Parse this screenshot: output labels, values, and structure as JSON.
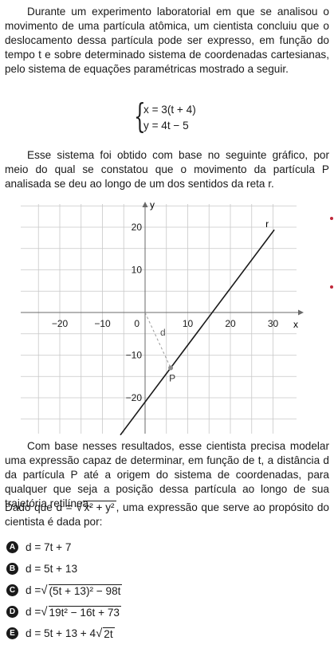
{
  "intro": "Durante um experimento laboratorial em que se analisou o movimento de uma partícula atômica, um cientista concluiu que o deslocamento dessa partícula pode ser expresso, em função do tempo t e sobre determinado sistema de coordenadas cartesianas, pelo sistema de equações paramétricas mostrado a seguir.",
  "equations": {
    "x": "x = 3(t + 4)",
    "y": "y = 4t − 5"
  },
  "graph_intro": "Esse sistema foi obtido com base no seguinte gráfico, por meio do qual se constatou que o movimento da partícula P analisada se deu ao longo de um dos sentidos da reta r.",
  "graph": {
    "x_axis_label": "x",
    "y_axis_label": "y",
    "x_ticks": [
      "−20",
      "−10",
      "0",
      "10",
      "20",
      "30"
    ],
    "y_ticks": [
      "20",
      "10",
      "−10",
      "−20"
    ],
    "line_label": "r",
    "point_label": "P",
    "distance_label": "d",
    "line": {
      "slope": 1.3333,
      "intercept": -21
    },
    "point": {
      "x": 6,
      "y": -13
    },
    "colors": {
      "grid": "#c8c8c8",
      "axis": "#6a6a6a",
      "line": "#1a1a1a",
      "point": "#8c8c8c"
    }
  },
  "question": "Com base nesses resultados, esse cientista precisa modelar uma expressão capaz de determinar, em função de t, a distância d da partícula P até a origem do sistema de coordenadas, para qualquer que seja a posição dessa partícula ao longo de sua trajetória retilínea.",
  "given": {
    "before": "Dado que ",
    "lhs": "d = ",
    "radicand": "x² + y²",
    "after": ", uma expressão que serve ao propósito do cientista é dada por:"
  },
  "options": [
    {
      "letter": "A",
      "lhs": "d = 7t + 7",
      "radicand": "",
      "rest": ""
    },
    {
      "letter": "B",
      "lhs": "d = 5t + 13",
      "radicand": "",
      "rest": ""
    },
    {
      "letter": "C",
      "lhs": "d = ",
      "radicand": "(5t + 13)² − 98t",
      "rest": ""
    },
    {
      "letter": "D",
      "lhs": "d = ",
      "radicand": "19t² − 16t + 73",
      "rest": ""
    },
    {
      "letter": "E",
      "lhs": "d = 5t + 13 + 4",
      "radicand": "2t",
      "rest": ""
    }
  ]
}
